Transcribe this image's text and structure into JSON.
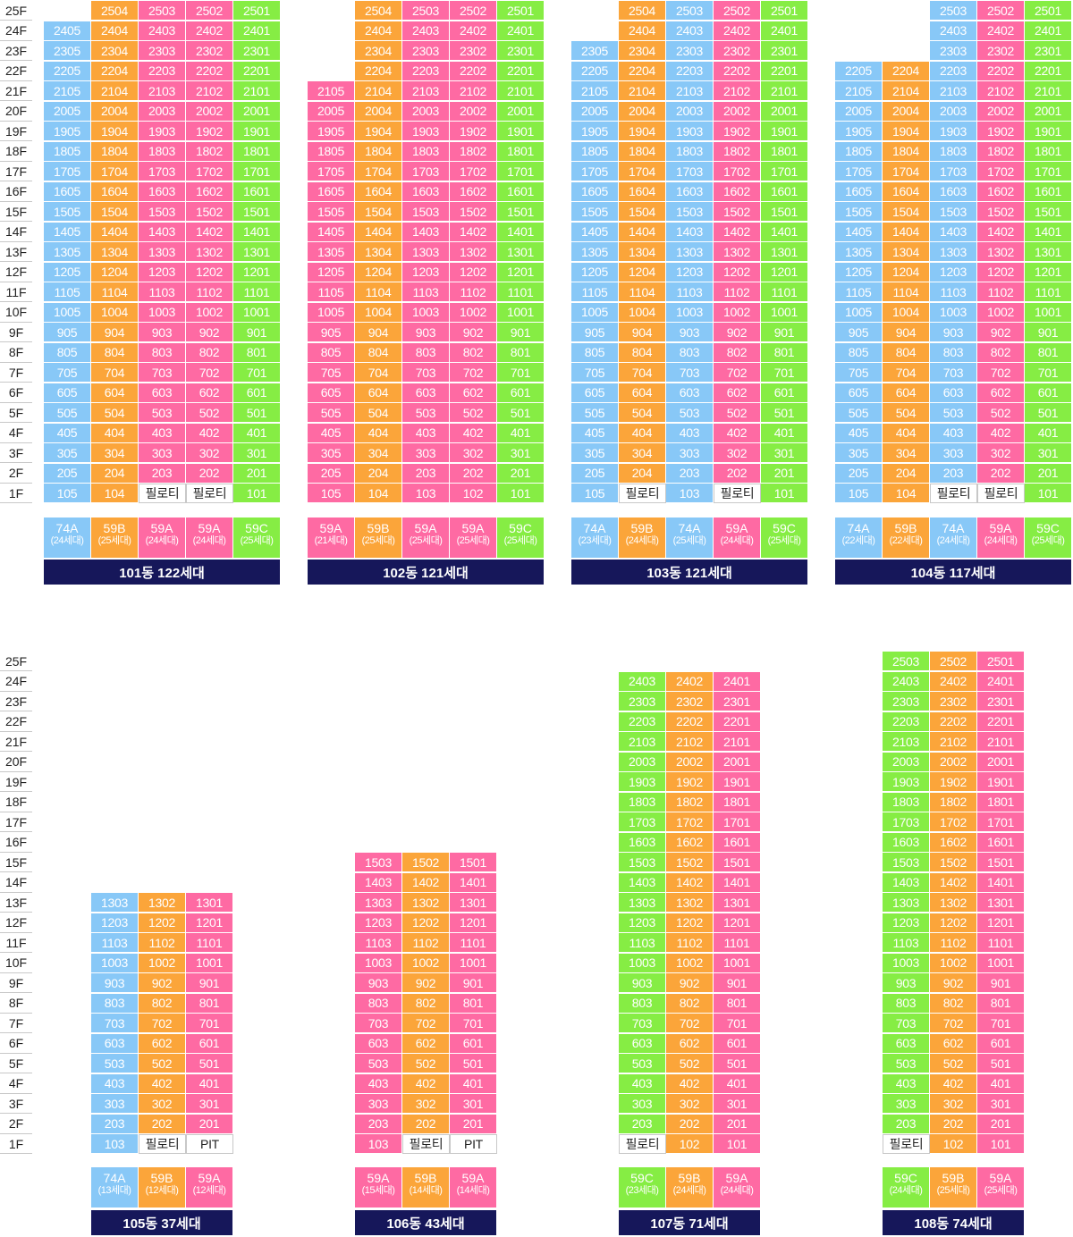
{
  "colors": {
    "blue": "#88c8f7",
    "orange": "#fba53a",
    "pink": "#fe6aa3",
    "green": "#86ed44",
    "navy": "#16175a"
  },
  "top_row": {
    "floors": [
      "25F",
      "24F",
      "23F",
      "22F",
      "21F",
      "20F",
      "19F",
      "18F",
      "17F",
      "16F",
      "15F",
      "14F",
      "13F",
      "12F",
      "11F",
      "10F",
      "9F",
      "8F",
      "7F",
      "6F",
      "5F",
      "4F",
      "3F",
      "2F",
      "1F"
    ],
    "buildings": [
      {
        "label": "101동 122세대",
        "lines": [
          {
            "line": "05",
            "color": "blue",
            "top": 24,
            "piloti": [],
            "type": "74A",
            "count": "(24세대)"
          },
          {
            "line": "04",
            "color": "orange",
            "top": 25,
            "piloti": [],
            "type": "59B",
            "count": "(25세대)"
          },
          {
            "line": "03",
            "color": "pink",
            "top": 25,
            "piloti": [
              1
            ],
            "type": "59A",
            "count": "(24세대)"
          },
          {
            "line": "02",
            "color": "pink",
            "top": 25,
            "piloti": [
              1
            ],
            "type": "59A",
            "count": "(24세대)"
          },
          {
            "line": "01",
            "color": "green",
            "top": 25,
            "piloti": [],
            "type": "59C",
            "count": "(25세대)"
          }
        ]
      },
      {
        "label": "102동 121세대",
        "lines": [
          {
            "line": "05",
            "color": "pink",
            "top": 21,
            "piloti": [],
            "type": "59A",
            "count": "(21세대)"
          },
          {
            "line": "04",
            "color": "orange",
            "top": 25,
            "piloti": [],
            "type": "59B",
            "count": "(25세대)"
          },
          {
            "line": "03",
            "color": "pink",
            "top": 25,
            "piloti": [],
            "type": "59A",
            "count": "(25세대)"
          },
          {
            "line": "02",
            "color": "pink",
            "top": 25,
            "piloti": [],
            "type": "59A",
            "count": "(25세대)"
          },
          {
            "line": "01",
            "color": "green",
            "top": 25,
            "piloti": [],
            "type": "59C",
            "count": "(25세대)"
          }
        ]
      },
      {
        "label": "103동 121세대",
        "lines": [
          {
            "line": "05",
            "color": "blue",
            "top": 23,
            "piloti": [],
            "type": "74A",
            "count": "(23세대)"
          },
          {
            "line": "04",
            "color": "orange",
            "top": 25,
            "piloti": [
              1
            ],
            "type": "59B",
            "count": "(24세대)"
          },
          {
            "line": "03",
            "color": "blue",
            "top": 25,
            "piloti": [],
            "type": "74A",
            "count": "(25세대)"
          },
          {
            "line": "02",
            "color": "pink",
            "top": 25,
            "piloti": [
              1
            ],
            "type": "59A",
            "count": "(24세대)"
          },
          {
            "line": "01",
            "color": "green",
            "top": 25,
            "piloti": [],
            "type": "59C",
            "count": "(25세대)"
          }
        ]
      },
      {
        "label": "104동 117세대",
        "lines": [
          {
            "line": "05",
            "color": "blue",
            "top": 22,
            "piloti": [],
            "type": "74A",
            "count": "(22세대)"
          },
          {
            "line": "04",
            "color": "orange",
            "top": 22,
            "piloti": [],
            "type": "59B",
            "count": "(22세대)"
          },
          {
            "line": "03",
            "color": "blue",
            "top": 25,
            "piloti": [
              1
            ],
            "type": "74A",
            "count": "(24세대)"
          },
          {
            "line": "02",
            "color": "pink",
            "top": 25,
            "piloti": [
              1
            ],
            "type": "59A",
            "count": "(24세대)"
          },
          {
            "line": "01",
            "color": "green",
            "top": 25,
            "piloti": [],
            "type": "59C",
            "count": "(25세대)"
          }
        ]
      }
    ]
  },
  "bottom_row": {
    "floors": [
      "25F",
      "24F",
      "23F",
      "22F",
      "21F",
      "20F",
      "19F",
      "18F",
      "17F",
      "16F",
      "15F",
      "14F",
      "13F",
      "12F",
      "11F",
      "10F",
      "9F",
      "8F",
      "7F",
      "6F",
      "5F",
      "4F",
      "3F",
      "2F",
      "1F"
    ],
    "buildings": [
      {
        "label": "105동 37세대",
        "lines": [
          {
            "line": "03",
            "color": "blue",
            "top": 13,
            "piloti": [],
            "type": "74A",
            "count": "(13세대)"
          },
          {
            "line": "02",
            "color": "orange",
            "top": 13,
            "piloti": [
              1
            ],
            "type": "59B",
            "count": "(12세대)"
          },
          {
            "line": "01",
            "color": "pink",
            "top": 13,
            "pit": [
              1
            ],
            "type": "59A",
            "count": "(12세대)"
          }
        ]
      },
      {
        "label": "106동 43세대",
        "lines": [
          {
            "line": "03",
            "color": "pink",
            "top": 15,
            "piloti": [],
            "type": "59A",
            "count": "(15세대)"
          },
          {
            "line": "02",
            "color": "orange",
            "top": 15,
            "piloti": [
              1
            ],
            "type": "59B",
            "count": "(14세대)"
          },
          {
            "line": "01",
            "color": "pink",
            "top": 15,
            "pit": [
              1
            ],
            "type": "59A",
            "count": "(14세대)"
          }
        ]
      },
      {
        "label": "107동 71세대",
        "lines": [
          {
            "line": "03",
            "color": "green",
            "top": 24,
            "piloti": [
              1
            ],
            "type": "59C",
            "count": "(23세대)"
          },
          {
            "line": "02",
            "color": "orange",
            "top": 24,
            "piloti": [],
            "type": "59B",
            "count": "(24세대)"
          },
          {
            "line": "01",
            "color": "pink",
            "top": 24,
            "piloti": [],
            "type": "59A",
            "count": "(24세대)"
          }
        ]
      },
      {
        "label": "108동 74세대",
        "lines": [
          {
            "line": "03",
            "color": "green",
            "top": 25,
            "piloti": [
              1
            ],
            "type": "59C",
            "count": "(24세대)"
          },
          {
            "line": "02",
            "color": "orange",
            "top": 25,
            "piloti": [],
            "type": "59B",
            "count": "(25세대)"
          },
          {
            "line": "01",
            "color": "pink",
            "top": 25,
            "piloti": [],
            "type": "59A",
            "count": "(25세대)"
          }
        ]
      }
    ]
  },
  "labels": {
    "piloti": "필로티",
    "pit": "PIT"
  }
}
